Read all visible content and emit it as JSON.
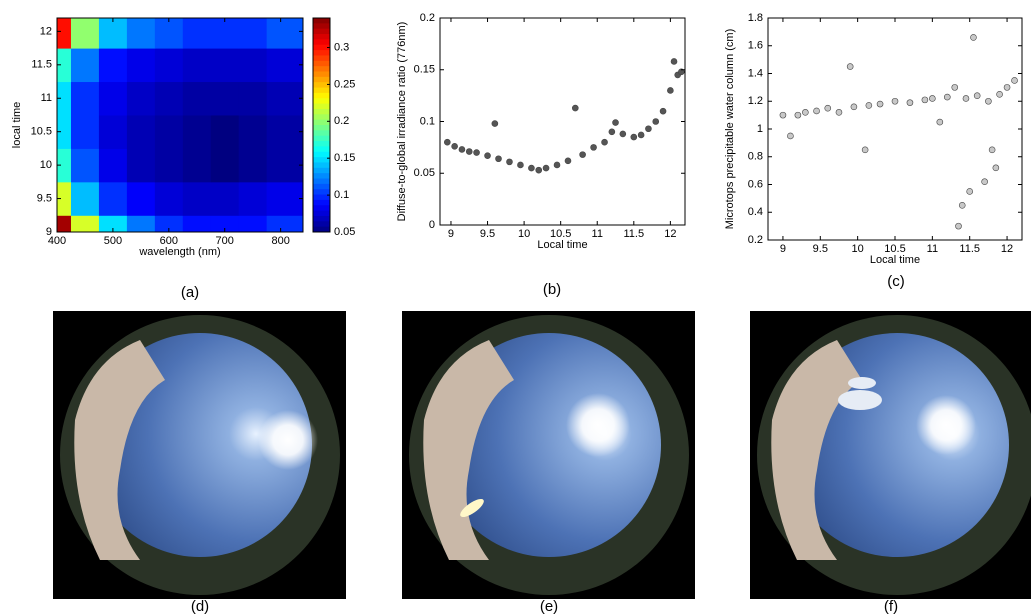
{
  "chart_data": [
    {
      "type": "heatmap",
      "caption": "(a)",
      "xlabel": "wavelength (nm)",
      "ylabel": "local time",
      "x": [
        400,
        450,
        500,
        550,
        600,
        650,
        700,
        750,
        800
      ],
      "y": [
        9,
        9.5,
        10,
        10.5,
        11,
        11.5,
        12
      ],
      "values": [
        [
          0.33,
          0.22,
          0.15,
          0.12,
          0.1,
          0.09,
          0.09,
          0.09,
          0.1
        ],
        [
          0.22,
          0.14,
          0.1,
          0.085,
          0.075,
          0.07,
          0.07,
          0.075,
          0.08
        ],
        [
          0.17,
          0.11,
          0.08,
          0.065,
          0.06,
          0.055,
          0.05,
          0.055,
          0.06
        ],
        [
          0.15,
          0.1,
          0.075,
          0.065,
          0.06,
          0.055,
          0.05,
          0.055,
          0.06
        ],
        [
          0.15,
          0.1,
          0.08,
          0.07,
          0.065,
          0.06,
          0.06,
          0.06,
          0.065
        ],
        [
          0.17,
          0.12,
          0.09,
          0.08,
          0.075,
          0.07,
          0.07,
          0.07,
          0.075
        ],
        [
          0.3,
          0.2,
          0.14,
          0.12,
          0.11,
          0.1,
          0.1,
          0.1,
          0.11
        ]
      ],
      "xlim": [
        400,
        840
      ],
      "ylim": [
        9,
        12.2
      ],
      "xticks": [
        400,
        500,
        600,
        700,
        800
      ],
      "yticks": [
        9,
        9.5,
        10,
        10.5,
        11,
        11.5,
        12
      ],
      "clim": [
        0.05,
        0.34
      ],
      "cticks": [
        0.05,
        0.1,
        0.15,
        0.2,
        0.25,
        0.3
      ],
      "colormap": "jet"
    },
    {
      "type": "scatter",
      "caption": "(b)",
      "xlabel": "Local time",
      "ylabel": "Diffuse-to-global irradiance ratio (776nm)",
      "color": "#555555",
      "x": [
        8.95,
        9.05,
        9.15,
        9.25,
        9.35,
        9.5,
        9.6,
        9.65,
        9.8,
        9.95,
        10.1,
        10.2,
        10.3,
        10.45,
        10.6,
        10.7,
        10.8,
        10.95,
        11.1,
        11.2,
        11.25,
        11.35,
        11.5,
        11.6,
        11.7,
        11.8,
        11.9,
        12.0,
        12.05,
        12.1,
        12.15
      ],
      "y": [
        0.08,
        0.076,
        0.073,
        0.071,
        0.07,
        0.067,
        0.098,
        0.064,
        0.061,
        0.058,
        0.055,
        0.053,
        0.055,
        0.058,
        0.062,
        0.113,
        0.068,
        0.075,
        0.08,
        0.09,
        0.099,
        0.088,
        0.085,
        0.087,
        0.093,
        0.1,
        0.11,
        0.13,
        0.158,
        0.145,
        0.148
      ],
      "xlim": [
        8.85,
        12.2
      ],
      "ylim": [
        0,
        0.2
      ],
      "xticks": [
        9,
        9.5,
        10,
        10.5,
        11,
        11.5,
        12
      ],
      "yticks": [
        0,
        0.05,
        0.1,
        0.15,
        0.2
      ]
    },
    {
      "type": "scatter",
      "caption": "(c)",
      "xlabel": "Local time",
      "ylabel": "Microtops precipitable water column (cm)",
      "color": "#c8c8c8",
      "x": [
        9.0,
        9.1,
        9.2,
        9.3,
        9.45,
        9.6,
        9.75,
        9.9,
        9.95,
        10.1,
        10.15,
        10.3,
        10.5,
        10.7,
        10.9,
        11.0,
        11.1,
        11.2,
        11.3,
        11.35,
        11.4,
        11.45,
        11.5,
        11.55,
        11.6,
        11.7,
        11.75,
        11.8,
        11.85,
        11.9,
        12.0,
        12.1
      ],
      "y": [
        1.1,
        0.95,
        1.1,
        1.12,
        1.13,
        1.15,
        1.12,
        1.45,
        1.16,
        0.85,
        1.17,
        1.18,
        1.2,
        1.19,
        1.21,
        1.22,
        1.05,
        1.23,
        1.3,
        0.3,
        0.45,
        1.22,
        0.55,
        1.66,
        1.24,
        0.62,
        1.2,
        0.85,
        0.72,
        1.25,
        1.3,
        1.35
      ],
      "xlim": [
        8.8,
        12.2
      ],
      "ylim": [
        0.2,
        1.8
      ],
      "xticks": [
        9,
        9.5,
        10,
        10.5,
        11,
        11.5,
        12
      ],
      "yticks": [
        0.2,
        0.4,
        0.6,
        0.8,
        1,
        1.2,
        1.4,
        1.6,
        1.8
      ]
    }
  ],
  "photos": [
    {
      "caption": "(d)"
    },
    {
      "caption": "(e)"
    },
    {
      "caption": "(f)"
    }
  ]
}
